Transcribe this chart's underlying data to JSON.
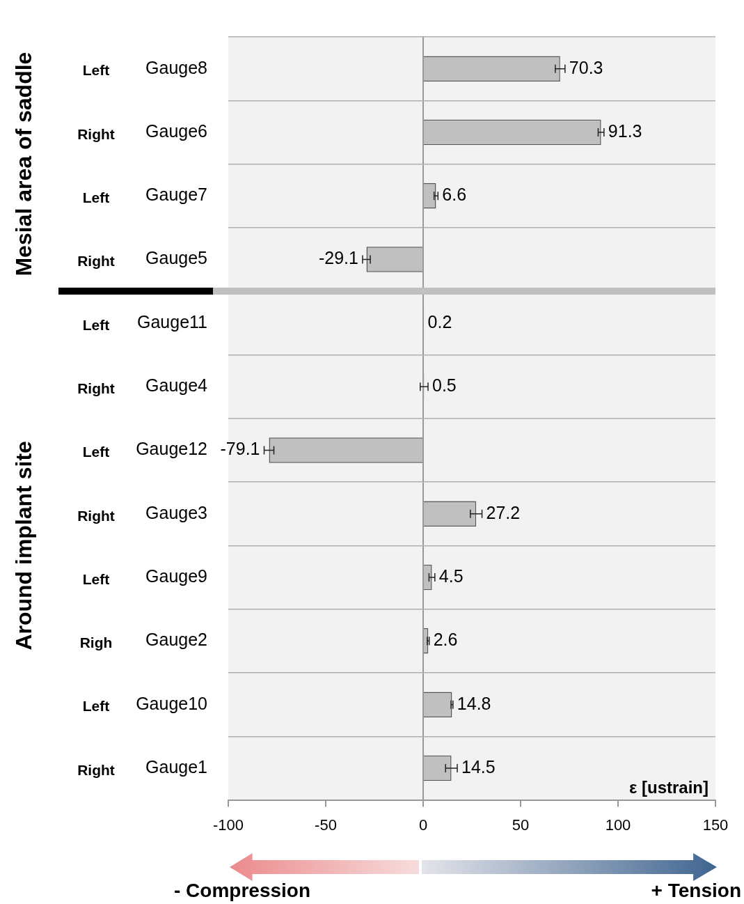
{
  "chart_data": {
    "type": "bar",
    "orientation": "horizontal",
    "xlabel": "ε [ustrain]",
    "categories": [
      "Gauge8",
      "Gauge6",
      "Gauge7",
      "Gauge5",
      "Gauge11",
      "Gauge4",
      "Gauge12",
      "Gauge3",
      "Gauge9",
      "Gauge2",
      "Gauge10",
      "Gauge1"
    ],
    "values": [
      70.3,
      91.3,
      6.6,
      -29.1,
      0.2,
      0.5,
      -79.1,
      27.2,
      4.5,
      2.6,
      14.8,
      14.5
    ],
    "errors": [
      2.5,
      1.5,
      1,
      2,
      null,
      2,
      2.5,
      3,
      1.5,
      0.5,
      0.5,
      3
    ],
    "color": "#c0c0c0",
    "data_labels": true,
    "xlim": [
      -100,
      150
    ],
    "xticks": [
      -100,
      -50,
      0,
      50,
      100,
      150
    ],
    "grid": "y",
    "legend": false,
    "annotations": [
      "Mesial area of saddle",
      "Around implant site",
      "- Compression",
      "+ Tension",
      "Left",
      "Right",
      "Left",
      "Right",
      "Left",
      "Right",
      "Left",
      "Right",
      "Left",
      "Righ",
      "Left",
      "Right"
    ]
  }
}
